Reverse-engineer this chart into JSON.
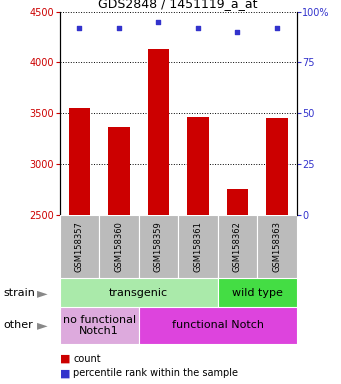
{
  "title": "GDS2848 / 1451119_a_at",
  "samples": [
    "GSM158357",
    "GSM158360",
    "GSM158359",
    "GSM158361",
    "GSM158362",
    "GSM158363"
  ],
  "counts": [
    3550,
    3370,
    4130,
    3460,
    2760,
    3450
  ],
  "percentiles": [
    92,
    92,
    95,
    92,
    90,
    92
  ],
  "ylim_left": [
    2500,
    4500
  ],
  "ylim_right": [
    0,
    100
  ],
  "yticks_left": [
    2500,
    3000,
    3500,
    4000,
    4500
  ],
  "yticks_right": [
    0,
    25,
    50,
    75,
    100
  ],
  "bar_color": "#cc0000",
  "dot_color": "#3333cc",
  "bar_width": 0.55,
  "strain_labels": [
    {
      "label": "transgenic",
      "start": 0,
      "end": 4,
      "color": "#aaeaaa"
    },
    {
      "label": "wild type",
      "start": 4,
      "end": 6,
      "color": "#44dd44"
    }
  ],
  "other_labels": [
    {
      "label": "no functional\nNotch1",
      "start": 0,
      "end": 2,
      "color": "#ddaadd"
    },
    {
      "label": "functional Notch",
      "start": 2,
      "end": 6,
      "color": "#dd44dd"
    }
  ],
  "tick_bg_color": "#bbbbbb",
  "legend_count_color": "#cc0000",
  "legend_dot_color": "#3333cc",
  "left_axis_color": "#cc0000",
  "right_axis_color": "#3333cc",
  "title_fontsize": 9,
  "axis_fontsize": 7,
  "label_fontsize": 6,
  "row_fontsize": 8,
  "legend_fontsize": 7
}
